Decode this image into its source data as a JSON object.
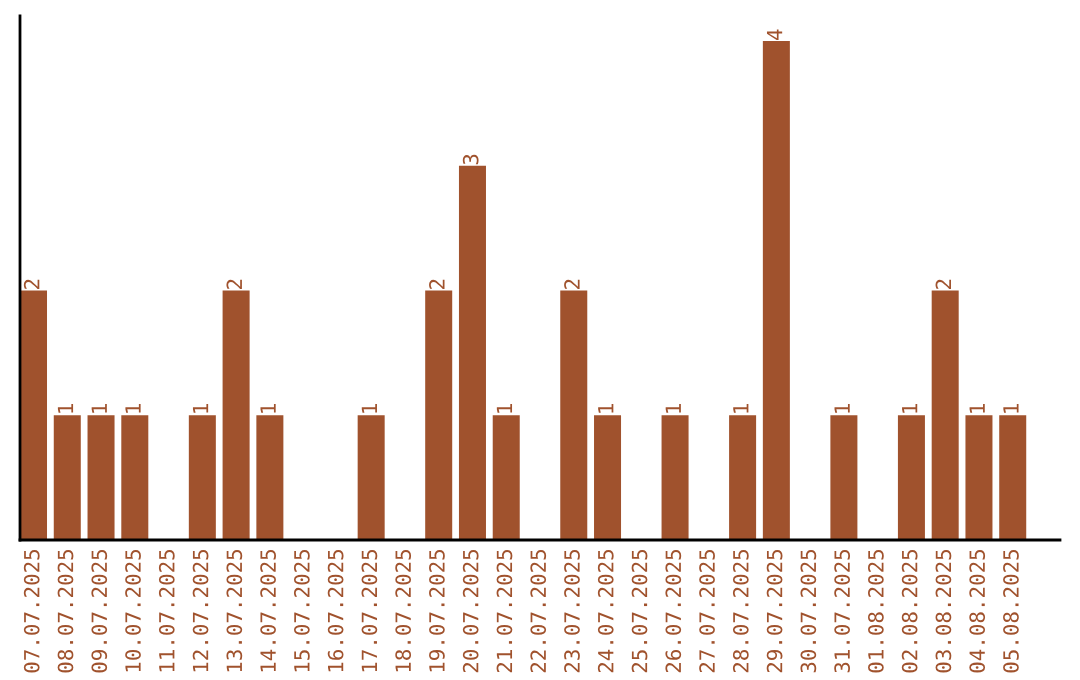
{
  "chart_data": {
    "type": "bar",
    "categories": [
      "07.07.2025",
      "08.07.2025",
      "09.07.2025",
      "10.07.2025",
      "11.07.2025",
      "12.07.2025",
      "13.07.2025",
      "14.07.2025",
      "15.07.2025",
      "16.07.2025",
      "17.07.2025",
      "18.07.2025",
      "19.07.2025",
      "20.07.2025",
      "21.07.2025",
      "22.07.2025",
      "23.07.2025",
      "24.07.2025",
      "25.07.2025",
      "26.07.2025",
      "27.07.2025",
      "28.07.2025",
      "29.07.2025",
      "30.07.2025",
      "31.07.2025",
      "01.08.2025",
      "02.08.2025",
      "03.08.2025",
      "04.08.2025",
      "05.08.2025"
    ],
    "values": [
      2,
      1,
      1,
      1,
      0,
      1,
      2,
      1,
      0,
      0,
      1,
      0,
      2,
      3,
      1,
      0,
      2,
      1,
      0,
      1,
      0,
      1,
      4,
      0,
      1,
      0,
      1,
      2,
      1,
      1
    ],
    "value_labels": [
      "2",
      "1",
      "1",
      "1",
      null,
      "1",
      "2",
      "1",
      null,
      null,
      "1",
      null,
      "2",
      "3",
      "1",
      null,
      "2",
      "1",
      null,
      "1",
      null,
      "1",
      "4",
      null,
      "1",
      null,
      "1",
      "2",
      "1",
      "1"
    ],
    "color": "#a0522d",
    "ylim": [
      0,
      4.2
    ],
    "tick_labels": "x",
    "grid": false,
    "legend": false
  }
}
